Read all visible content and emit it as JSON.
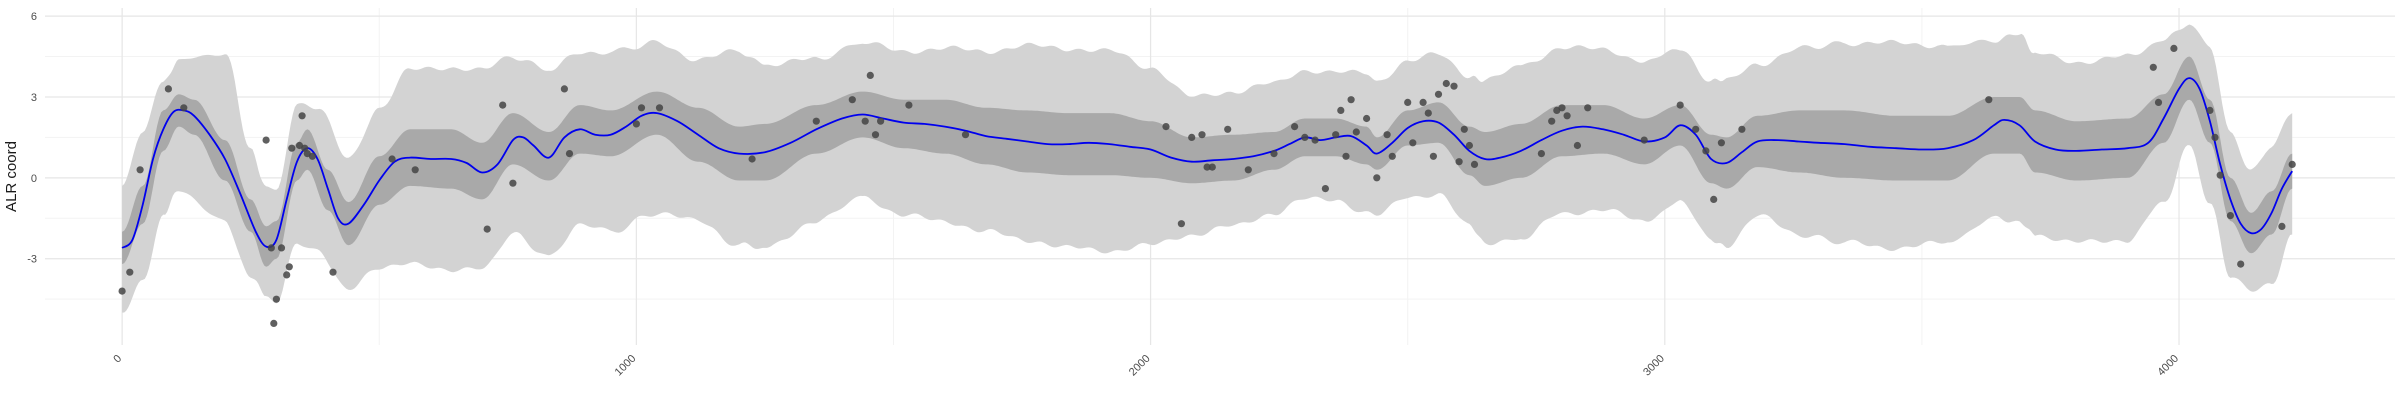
{
  "chart_data": {
    "type": "line",
    "title": "",
    "xlabel": "",
    "ylabel": "ALR coord",
    "xlim": [
      -150,
      4420
    ],
    "ylim": [
      -6.2,
      6.3
    ],
    "xticks": [
      0,
      1000,
      2000,
      3000,
      4000
    ],
    "xtick_labels": [
      "0",
      "1000",
      "2000",
      "3000",
      "4000"
    ],
    "xtick_rotation_deg": -45,
    "yticks": [
      -3,
      0,
      3,
      6
    ],
    "ytick_labels": [
      "-3",
      "0",
      "3",
      "6"
    ],
    "grid": true,
    "legend": "none",
    "colors": {
      "mean_line": "#0000ee",
      "inner_band": "#a9a9a9",
      "outer_band": "#d3d3d3",
      "points": "#444444",
      "grid_major": "#e6e6e6",
      "grid_minor": "#f3f3f3"
    },
    "mean_line": [
      [
        0,
        -2.6
      ],
      [
        20,
        -2.3
      ],
      [
        40,
        -1.0
      ],
      [
        60,
        0.7
      ],
      [
        80,
        1.8
      ],
      [
        100,
        2.45
      ],
      [
        120,
        2.5
      ],
      [
        140,
        2.3
      ],
      [
        170,
        1.6
      ],
      [
        200,
        0.7
      ],
      [
        230,
        -0.6
      ],
      [
        260,
        -2.0
      ],
      [
        280,
        -2.55
      ],
      [
        300,
        -2.3
      ],
      [
        320,
        -0.8
      ],
      [
        340,
        0.6
      ],
      [
        360,
        1.1
      ],
      [
        380,
        0.7
      ],
      [
        400,
        -0.4
      ],
      [
        420,
        -1.5
      ],
      [
        440,
        -1.7
      ],
      [
        470,
        -1.0
      ],
      [
        500,
        -0.1
      ],
      [
        530,
        0.6
      ],
      [
        560,
        0.75
      ],
      [
        600,
        0.7
      ],
      [
        640,
        0.7
      ],
      [
        670,
        0.55
      ],
      [
        700,
        0.2
      ],
      [
        730,
        0.5
      ],
      [
        760,
        1.4
      ],
      [
        780,
        1.5
      ],
      [
        800,
        1.2
      ],
      [
        830,
        0.75
      ],
      [
        860,
        1.5
      ],
      [
        890,
        1.8
      ],
      [
        920,
        1.6
      ],
      [
        950,
        1.6
      ],
      [
        980,
        1.9
      ],
      [
        1010,
        2.3
      ],
      [
        1040,
        2.4
      ],
      [
        1080,
        2.1
      ],
      [
        1120,
        1.6
      ],
      [
        1160,
        1.1
      ],
      [
        1200,
        0.9
      ],
      [
        1250,
        0.95
      ],
      [
        1300,
        1.3
      ],
      [
        1350,
        1.8
      ],
      [
        1400,
        2.2
      ],
      [
        1440,
        2.35
      ],
      [
        1480,
        2.2
      ],
      [
        1520,
        2.05
      ],
      [
        1560,
        2.0
      ],
      [
        1600,
        1.9
      ],
      [
        1640,
        1.75
      ],
      [
        1680,
        1.55
      ],
      [
        1720,
        1.45
      ],
      [
        1760,
        1.35
      ],
      [
        1800,
        1.25
      ],
      [
        1840,
        1.25
      ],
      [
        1880,
        1.3
      ],
      [
        1920,
        1.25
      ],
      [
        1960,
        1.15
      ],
      [
        2000,
        1.05
      ],
      [
        2040,
        0.75
      ],
      [
        2080,
        0.6
      ],
      [
        2120,
        0.65
      ],
      [
        2160,
        0.7
      ],
      [
        2200,
        0.8
      ],
      [
        2240,
        1.0
      ],
      [
        2270,
        1.25
      ],
      [
        2300,
        1.5
      ],
      [
        2330,
        1.4
      ],
      [
        2360,
        1.5
      ],
      [
        2390,
        1.55
      ],
      [
        2420,
        1.2
      ],
      [
        2440,
        0.9
      ],
      [
        2470,
        1.3
      ],
      [
        2500,
        1.85
      ],
      [
        2530,
        2.1
      ],
      [
        2560,
        2.05
      ],
      [
        2590,
        1.6
      ],
      [
        2620,
        1.0
      ],
      [
        2650,
        0.7
      ],
      [
        2680,
        0.75
      ],
      [
        2720,
        1.0
      ],
      [
        2760,
        1.4
      ],
      [
        2800,
        1.75
      ],
      [
        2840,
        1.9
      ],
      [
        2880,
        1.8
      ],
      [
        2920,
        1.6
      ],
      [
        2960,
        1.35
      ],
      [
        3000,
        1.5
      ],
      [
        3030,
        1.95
      ],
      [
        3060,
        1.6
      ],
      [
        3090,
        0.7
      ],
      [
        3120,
        0.55
      ],
      [
        3150,
        0.95
      ],
      [
        3180,
        1.35
      ],
      [
        3220,
        1.4
      ],
      [
        3260,
        1.35
      ],
      [
        3300,
        1.3
      ],
      [
        3350,
        1.25
      ],
      [
        3400,
        1.15
      ],
      [
        3450,
        1.1
      ],
      [
        3500,
        1.05
      ],
      [
        3550,
        1.1
      ],
      [
        3600,
        1.4
      ],
      [
        3640,
        1.95
      ],
      [
        3660,
        2.15
      ],
      [
        3690,
        1.95
      ],
      [
        3720,
        1.35
      ],
      [
        3760,
        1.05
      ],
      [
        3800,
        1.0
      ],
      [
        3850,
        1.05
      ],
      [
        3900,
        1.1
      ],
      [
        3940,
        1.3
      ],
      [
        3970,
        2.2
      ],
      [
        4000,
        3.3
      ],
      [
        4020,
        3.7
      ],
      [
        4040,
        3.3
      ],
      [
        4060,
        2.1
      ],
      [
        4080,
        0.5
      ],
      [
        4100,
        -0.8
      ],
      [
        4120,
        -1.7
      ],
      [
        4140,
        -2.05
      ],
      [
        4160,
        -1.9
      ],
      [
        4180,
        -1.3
      ],
      [
        4200,
        -0.4
      ],
      [
        4220,
        0.25
      ]
    ],
    "inner_band": [
      [
        0,
        -3.2,
        -2.0
      ],
      [
        40,
        -1.7,
        -0.3
      ],
      [
        80,
        1.0,
        2.5
      ],
      [
        110,
        1.9,
        3.1
      ],
      [
        140,
        1.6,
        2.9
      ],
      [
        200,
        -0.1,
        1.4
      ],
      [
        250,
        -2.0,
        -0.8
      ],
      [
        280,
        -3.3,
        -1.8
      ],
      [
        300,
        -3.0,
        -1.6
      ],
      [
        340,
        -0.1,
        1.3
      ],
      [
        360,
        0.3,
        1.8
      ],
      [
        400,
        -1.2,
        0.3
      ],
      [
        440,
        -2.5,
        -0.9
      ],
      [
        500,
        -1.0,
        0.8
      ],
      [
        560,
        -0.3,
        1.8
      ],
      [
        640,
        -0.4,
        1.8
      ],
      [
        700,
        -0.8,
        1.3
      ],
      [
        760,
        0.5,
        2.4
      ],
      [
        830,
        -0.1,
        1.7
      ],
      [
        890,
        0.9,
        2.7
      ],
      [
        950,
        0.8,
        2.5
      ],
      [
        1040,
        1.6,
        3.2
      ],
      [
        1120,
        0.6,
        2.6
      ],
      [
        1200,
        -0.1,
        1.9
      ],
      [
        1250,
        -0.1,
        2.0
      ],
      [
        1350,
        0.9,
        2.7
      ],
      [
        1440,
        1.5,
        3.2
      ],
      [
        1520,
        1.1,
        2.9
      ],
      [
        1600,
        0.9,
        2.9
      ],
      [
        1680,
        0.5,
        2.6
      ],
      [
        1760,
        0.2,
        2.5
      ],
      [
        1840,
        0.1,
        2.4
      ],
      [
        1920,
        0.1,
        2.4
      ],
      [
        2000,
        0.0,
        2.1
      ],
      [
        2080,
        -0.2,
        1.5
      ],
      [
        2160,
        -0.1,
        1.6
      ],
      [
        2240,
        0.3,
        1.7
      ],
      [
        2300,
        0.8,
        2.2
      ],
      [
        2360,
        0.8,
        2.2
      ],
      [
        2420,
        0.5,
        1.9
      ],
      [
        2440,
        0.3,
        1.5
      ],
      [
        2500,
        1.2,
        2.5
      ],
      [
        2560,
        1.3,
        2.8
      ],
      [
        2620,
        0.1,
        1.9
      ],
      [
        2650,
        -0.3,
        1.7
      ],
      [
        2720,
        0.0,
        2.0
      ],
      [
        2800,
        0.8,
        2.7
      ],
      [
        2880,
        0.9,
        2.7
      ],
      [
        2960,
        0.5,
        2.2
      ],
      [
        3030,
        1.2,
        2.7
      ],
      [
        3090,
        -0.2,
        1.6
      ],
      [
        3120,
        -0.4,
        1.5
      ],
      [
        3180,
        0.4,
        2.3
      ],
      [
        3260,
        0.2,
        2.5
      ],
      [
        3350,
        0.0,
        2.5
      ],
      [
        3450,
        -0.1,
        2.3
      ],
      [
        3550,
        -0.1,
        2.3
      ],
      [
        3640,
        0.9,
        3.0
      ],
      [
        3690,
        0.9,
        3.0
      ],
      [
        3720,
        0.2,
        2.5
      ],
      [
        3800,
        -0.1,
        2.1
      ],
      [
        3900,
        0.0,
        2.2
      ],
      [
        3970,
        1.3,
        3.1
      ],
      [
        4020,
        2.9,
        4.5
      ],
      [
        4060,
        1.3,
        2.9
      ],
      [
        4100,
        -1.6,
        0.0
      ],
      [
        4140,
        -2.8,
        -1.3
      ],
      [
        4180,
        -2.1,
        -0.5
      ],
      [
        4220,
        -0.4,
        0.9
      ]
    ],
    "outer_band": [
      [
        0,
        -5.0,
        -0.3
      ],
      [
        40,
        -3.9,
        1.8
      ],
      [
        80,
        -1.4,
        3.6
      ],
      [
        110,
        -0.5,
        4.4
      ],
      [
        200,
        -1.6,
        4.6
      ],
      [
        250,
        -3.7,
        1.1
      ],
      [
        280,
        -4.4,
        -0.3
      ],
      [
        300,
        -4.6,
        -0.5
      ],
      [
        340,
        -2.5,
        2.8
      ],
      [
        380,
        -2.7,
        2.6
      ],
      [
        440,
        -4.1,
        0.7
      ],
      [
        500,
        -3.4,
        2.6
      ],
      [
        560,
        -3.1,
        4.0
      ],
      [
        640,
        -3.5,
        4.1
      ],
      [
        700,
        -3.3,
        4.0
      ],
      [
        760,
        -2.1,
        4.5
      ],
      [
        830,
        -2.9,
        4.0
      ],
      [
        890,
        -1.7,
        4.6
      ],
      [
        950,
        -2.0,
        4.7
      ],
      [
        1040,
        -1.3,
        5.0
      ],
      [
        1120,
        -1.6,
        4.4
      ],
      [
        1200,
        -2.5,
        4.7
      ],
      [
        1250,
        -2.6,
        4.2
      ],
      [
        1350,
        -1.6,
        4.4
      ],
      [
        1440,
        -0.7,
        5.0
      ],
      [
        1520,
        -1.4,
        4.7
      ],
      [
        1600,
        -1.6,
        4.8
      ],
      [
        1680,
        -2.0,
        4.7
      ],
      [
        1760,
        -2.3,
        4.9
      ],
      [
        1840,
        -2.6,
        4.8
      ],
      [
        1920,
        -2.7,
        4.7
      ],
      [
        2000,
        -2.5,
        4.1
      ],
      [
        2080,
        -2.1,
        3.0
      ],
      [
        2160,
        -1.8,
        3.2
      ],
      [
        2240,
        -1.3,
        3.5
      ],
      [
        2300,
        -0.8,
        4.0
      ],
      [
        2360,
        -0.8,
        3.9
      ],
      [
        2420,
        -1.3,
        3.9
      ],
      [
        2440,
        -1.4,
        3.6
      ],
      [
        2500,
        -0.7,
        4.3
      ],
      [
        2560,
        -0.6,
        4.6
      ],
      [
        2620,
        -1.8,
        3.8
      ],
      [
        2650,
        -2.4,
        3.6
      ],
      [
        2720,
        -2.3,
        4.2
      ],
      [
        2800,
        -1.3,
        4.8
      ],
      [
        2880,
        -1.2,
        4.8
      ],
      [
        2960,
        -1.6,
        4.3
      ],
      [
        3030,
        -0.9,
        4.8
      ],
      [
        3090,
        -2.3,
        3.6
      ],
      [
        3120,
        -2.5,
        3.6
      ],
      [
        3180,
        -1.4,
        4.2
      ],
      [
        3260,
        -2.1,
        4.8
      ],
      [
        3350,
        -2.4,
        5.0
      ],
      [
        3450,
        -2.6,
        5.0
      ],
      [
        3550,
        -2.4,
        4.9
      ],
      [
        3640,
        -1.5,
        5.1
      ],
      [
        3690,
        -1.6,
        5.3
      ],
      [
        3720,
        -2.1,
        4.6
      ],
      [
        3800,
        -2.4,
        4.3
      ],
      [
        3900,
        -2.3,
        4.5
      ],
      [
        3970,
        -0.9,
        5.1
      ],
      [
        4020,
        1.2,
        5.7
      ],
      [
        4060,
        -0.9,
        4.8
      ],
      [
        4100,
        -3.7,
        1.7
      ],
      [
        4140,
        -4.2,
        0.3
      ],
      [
        4180,
        -3.9,
        1.1
      ],
      [
        4220,
        -2.1,
        2.4
      ]
    ],
    "points": [
      [
        0,
        -4.2
      ],
      [
        15,
        -3.5
      ],
      [
        35,
        0.3
      ],
      [
        90,
        3.3
      ],
      [
        120,
        2.6
      ],
      [
        280,
        1.4
      ],
      [
        290,
        -2.6
      ],
      [
        295,
        -5.4
      ],
      [
        300,
        -4.5
      ],
      [
        310,
        -2.6
      ],
      [
        320,
        -3.6
      ],
      [
        325,
        -3.3
      ],
      [
        330,
        1.1
      ],
      [
        345,
        1.2
      ],
      [
        350,
        2.3
      ],
      [
        355,
        1.1
      ],
      [
        360,
        0.9
      ],
      [
        370,
        0.8
      ],
      [
        410,
        -3.5
      ],
      [
        525,
        0.7
      ],
      [
        570,
        0.3
      ],
      [
        710,
        -1.9
      ],
      [
        740,
        2.7
      ],
      [
        760,
        -0.2
      ],
      [
        860,
        3.3
      ],
      [
        870,
        0.9
      ],
      [
        1000,
        2.0
      ],
      [
        1010,
        2.6
      ],
      [
        1045,
        2.6
      ],
      [
        1225,
        0.7
      ],
      [
        1350,
        2.1
      ],
      [
        1420,
        2.9
      ],
      [
        1445,
        2.1
      ],
      [
        1455,
        3.8
      ],
      [
        1465,
        1.6
      ],
      [
        1475,
        2.1
      ],
      [
        1530,
        2.7
      ],
      [
        1640,
        1.6
      ],
      [
        2030,
        1.9
      ],
      [
        2060,
        -1.7
      ],
      [
        2080,
        1.5
      ],
      [
        2100,
        1.6
      ],
      [
        2110,
        0.4
      ],
      [
        2120,
        0.4
      ],
      [
        2150,
        1.8
      ],
      [
        2190,
        0.3
      ],
      [
        2240,
        0.9
      ],
      [
        2280,
        1.9
      ],
      [
        2300,
        1.5
      ],
      [
        2320,
        1.4
      ],
      [
        2340,
        -0.4
      ],
      [
        2360,
        1.6
      ],
      [
        2370,
        2.5
      ],
      [
        2380,
        0.8
      ],
      [
        2390,
        2.9
      ],
      [
        2400,
        1.7
      ],
      [
        2420,
        2.2
      ],
      [
        2440,
        0.0
      ],
      [
        2460,
        1.6
      ],
      [
        2470,
        0.8
      ],
      [
        2500,
        2.8
      ],
      [
        2510,
        1.3
      ],
      [
        2530,
        2.8
      ],
      [
        2540,
        2.4
      ],
      [
        2550,
        0.8
      ],
      [
        2560,
        3.1
      ],
      [
        2575,
        3.5
      ],
      [
        2590,
        3.4
      ],
      [
        2600,
        0.6
      ],
      [
        2610,
        1.8
      ],
      [
        2620,
        1.2
      ],
      [
        2630,
        0.5
      ],
      [
        2760,
        0.9
      ],
      [
        2780,
        2.1
      ],
      [
        2790,
        2.5
      ],
      [
        2800,
        2.6
      ],
      [
        2810,
        2.3
      ],
      [
        2830,
        1.2
      ],
      [
        2850,
        2.6
      ],
      [
        2960,
        1.4
      ],
      [
        3030,
        2.7
      ],
      [
        3060,
        1.8
      ],
      [
        3080,
        1.0
      ],
      [
        3095,
        -0.8
      ],
      [
        3110,
        1.3
      ],
      [
        3150,
        1.8
      ],
      [
        3630,
        2.9
      ],
      [
        3950,
        4.1
      ],
      [
        3960,
        2.8
      ],
      [
        3990,
        4.8
      ],
      [
        4060,
        2.5
      ],
      [
        4070,
        1.5
      ],
      [
        4080,
        0.1
      ],
      [
        4100,
        -1.4
      ],
      [
        4120,
        -3.2
      ],
      [
        4200,
        -1.8
      ],
      [
        4220,
        0.5
      ]
    ]
  }
}
